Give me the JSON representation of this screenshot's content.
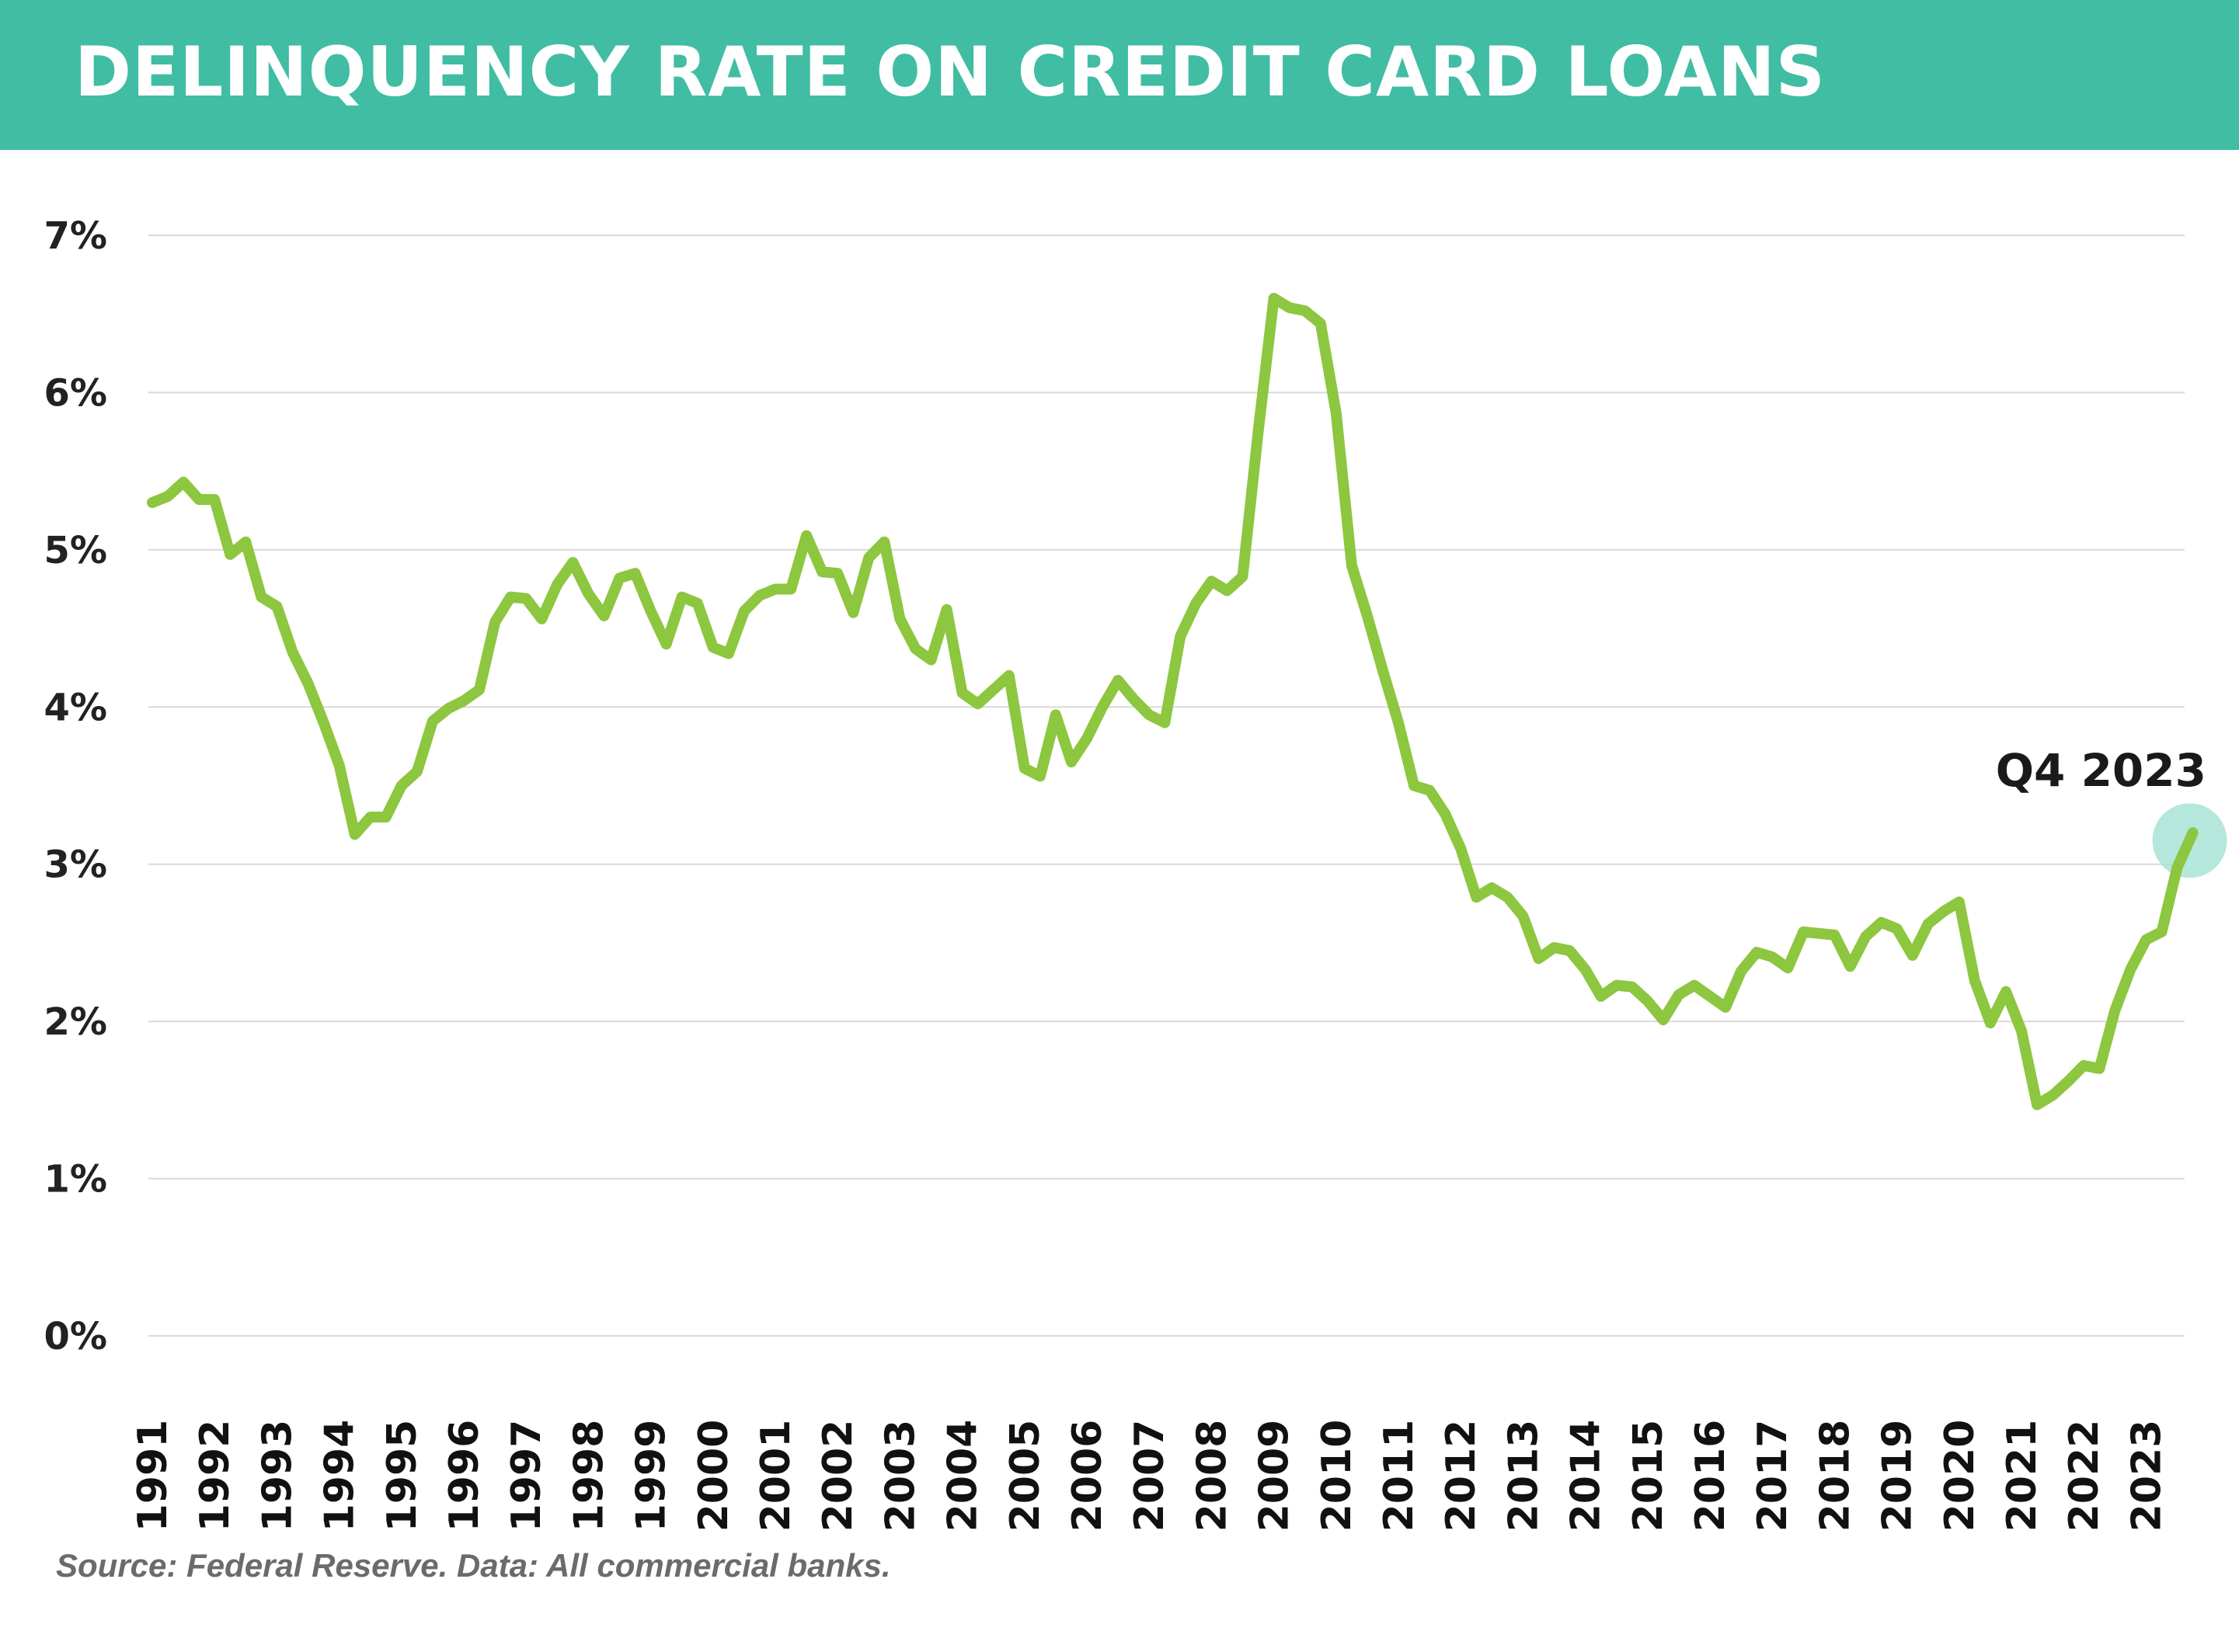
{
  "header": {
    "title": "DELINQUENCY RATE ON CREDIT CARD LOANS"
  },
  "footer": {
    "source": "Source: Federal Reserve. Data: All commercial banks."
  },
  "colors": {
    "header_bg": "#40BDA3",
    "line": "#8DC63F",
    "highlight": "#A8E3D6",
    "grid": "#d9d9d9"
  },
  "chart_data": {
    "type": "line",
    "title": "DELINQUENCY RATE ON CREDIT CARD LOANS",
    "xlabel": "",
    "ylabel": "",
    "ylim": [
      0,
      7
    ],
    "y_ticks": [
      "0%",
      "1%",
      "2%",
      "3%",
      "4%",
      "5%",
      "6%",
      "7%"
    ],
    "x_ticks": [
      "1991",
      "1992",
      "1993",
      "1994",
      "1995",
      "1996",
      "1997",
      "1998",
      "1999",
      "2000",
      "2001",
      "2002",
      "2003",
      "2004",
      "2005",
      "2006",
      "2007",
      "2008",
      "2009",
      "2010",
      "2011",
      "2012",
      "2013",
      "2014",
      "2015",
      "2016",
      "2017",
      "2018",
      "2019",
      "2020",
      "2021",
      "2022",
      "2023"
    ],
    "grid": "horizontal",
    "annotation": {
      "label": "Q4 2023",
      "point": "1991 Q1 + 131 quarters (Q4 2023)"
    },
    "series": [
      {
        "frequency": "quarterly",
        "start": "Q1 1991",
        "values": [
          5.3,
          5.34,
          5.43,
          5.32,
          5.32,
          4.97,
          5.05,
          4.7,
          4.64,
          4.35,
          4.15,
          3.9,
          3.63,
          3.19,
          3.3,
          3.3,
          3.5,
          3.59,
          3.91,
          3.99,
          4.04,
          4.11,
          4.54,
          4.7,
          4.69,
          4.56,
          4.78,
          4.92,
          4.72,
          4.58,
          4.82,
          4.85,
          4.61,
          4.4,
          4.7,
          4.66,
          4.38,
          4.34,
          4.61,
          4.71,
          4.75,
          4.75,
          5.09,
          4.86,
          4.85,
          4.6,
          4.95,
          5.05,
          4.56,
          4.37,
          4.3,
          4.62,
          4.09,
          4.02,
          4.11,
          4.2,
          3.61,
          3.56,
          3.95,
          3.65,
          3.8,
          4.0,
          4.17,
          4.05,
          3.95,
          3.9,
          4.45,
          4.66,
          4.8,
          4.74,
          4.83,
          5.75,
          6.6,
          6.54,
          6.52,
          6.44,
          5.87,
          4.9,
          4.58,
          4.23,
          3.9,
          3.5,
          3.47,
          3.32,
          3.1,
          2.79,
          2.85,
          2.79,
          2.67,
          2.4,
          2.47,
          2.45,
          2.33,
          2.16,
          2.23,
          2.22,
          2.13,
          2.01,
          2.17,
          2.23,
          2.16,
          2.09,
          2.32,
          2.44,
          2.41,
          2.34,
          2.57,
          2.56,
          2.55,
          2.35,
          2.54,
          2.63,
          2.59,
          2.42,
          2.62,
          2.7,
          2.76,
          2.26,
          1.99,
          2.19,
          1.94,
          1.47,
          1.53,
          1.62,
          1.72,
          1.7,
          2.07,
          2.33,
          2.52,
          2.57,
          2.98,
          3.2
        ]
      }
    ]
  }
}
